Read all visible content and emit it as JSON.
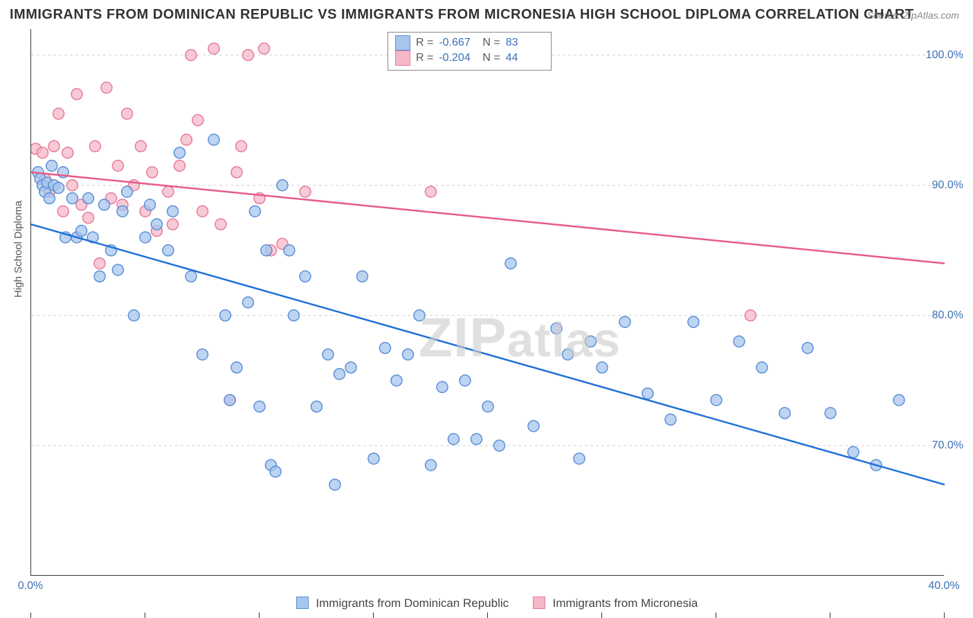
{
  "title": "IMMIGRANTS FROM DOMINICAN REPUBLIC VS IMMIGRANTS FROM MICRONESIA HIGH SCHOOL DIPLOMA CORRELATION CHART",
  "source": "Source: ZipAtlas.com",
  "y_axis_label": "High School Diploma",
  "watermark": "ZIPatlas",
  "chart": {
    "type": "scatter_with_regression",
    "xlim": [
      0,
      40
    ],
    "ylim": [
      60,
      102
    ],
    "x_ticks": [
      0,
      5,
      10,
      15,
      20,
      25,
      30,
      35,
      40
    ],
    "x_tick_labels_shown": {
      "0": "0.0%",
      "40": "40.0%"
    },
    "y_ticks": [
      70,
      80,
      90,
      100
    ],
    "y_tick_labels": [
      "70.0%",
      "80.0%",
      "90.0%",
      "100.0%"
    ],
    "grid_color": "#d0d0d0",
    "background_color": "#ffffff",
    "marker_radius": 8,
    "line_width": 2.5
  },
  "series": [
    {
      "key": "dominican",
      "label": "Immigrants from Dominican Republic",
      "fill_color": "#a7c6ed",
      "stroke_color": "#5b8fd6",
      "line_color": "#1f6fd6",
      "R": "-0.667",
      "N": "83",
      "regression": {
        "x1": 0,
        "y1": 87,
        "x2": 40,
        "y2": 67
      },
      "points": [
        [
          0.3,
          91
        ],
        [
          0.4,
          90.5
        ],
        [
          0.5,
          90
        ],
        [
          0.6,
          89.5
        ],
        [
          0.7,
          90.2
        ],
        [
          0.8,
          89
        ],
        [
          0.9,
          91.5
        ],
        [
          1.0,
          90
        ],
        [
          1.2,
          89.8
        ],
        [
          1.4,
          91
        ],
        [
          1.5,
          86
        ],
        [
          1.8,
          89
        ],
        [
          2.0,
          86
        ],
        [
          2.2,
          86.5
        ],
        [
          2.5,
          89
        ],
        [
          2.7,
          86
        ],
        [
          3.0,
          83
        ],
        [
          3.2,
          88.5
        ],
        [
          3.5,
          85
        ],
        [
          3.8,
          83.5
        ],
        [
          4.0,
          88
        ],
        [
          4.2,
          89.5
        ],
        [
          4.5,
          80
        ],
        [
          5.0,
          86
        ],
        [
          5.2,
          88.5
        ],
        [
          5.5,
          87
        ],
        [
          6.0,
          85
        ],
        [
          6.2,
          88
        ],
        [
          6.5,
          92.5
        ],
        [
          7.0,
          83
        ],
        [
          7.5,
          77
        ],
        [
          8.0,
          93.5
        ],
        [
          8.5,
          80
        ],
        [
          8.7,
          73.5
        ],
        [
          9.0,
          76
        ],
        [
          9.5,
          81
        ],
        [
          9.8,
          88
        ],
        [
          10.0,
          73
        ],
        [
          10.3,
          85
        ],
        [
          10.5,
          68.5
        ],
        [
          10.7,
          68
        ],
        [
          11.0,
          90
        ],
        [
          11.3,
          85
        ],
        [
          11.5,
          80
        ],
        [
          12.0,
          83
        ],
        [
          12.5,
          73
        ],
        [
          13.0,
          77
        ],
        [
          13.3,
          67
        ],
        [
          13.5,
          75.5
        ],
        [
          14.0,
          76
        ],
        [
          14.5,
          83
        ],
        [
          15.0,
          69
        ],
        [
          15.5,
          77.5
        ],
        [
          16.0,
          75
        ],
        [
          16.5,
          77
        ],
        [
          17.0,
          80
        ],
        [
          17.5,
          68.5
        ],
        [
          18.0,
          74.5
        ],
        [
          18.5,
          70.5
        ],
        [
          19.0,
          75
        ],
        [
          19.5,
          70.5
        ],
        [
          20.0,
          73
        ],
        [
          20.5,
          70
        ],
        [
          21.0,
          84
        ],
        [
          22.0,
          71.5
        ],
        [
          23.0,
          79
        ],
        [
          23.5,
          77
        ],
        [
          24.0,
          69
        ],
        [
          24.5,
          78
        ],
        [
          25.0,
          76
        ],
        [
          26.0,
          79.5
        ],
        [
          27.0,
          74
        ],
        [
          28.0,
          72
        ],
        [
          29.0,
          79.5
        ],
        [
          30.0,
          73.5
        ],
        [
          31.0,
          78
        ],
        [
          32.0,
          76
        ],
        [
          33.0,
          72.5
        ],
        [
          34.0,
          77.5
        ],
        [
          35.0,
          72.5
        ],
        [
          36.0,
          69.5
        ],
        [
          37.0,
          68.5
        ],
        [
          38.0,
          73.5
        ]
      ]
    },
    {
      "key": "micronesia",
      "label": "Immigrants from Micronesia",
      "fill_color": "#f5b8c8",
      "stroke_color": "#e77a9a",
      "line_color": "#e75a88",
      "R": "-0.204",
      "N": "44",
      "regression": {
        "x1": 0,
        "y1": 91,
        "x2": 40,
        "y2": 84
      },
      "points": [
        [
          0.2,
          92.8
        ],
        [
          0.5,
          92.5
        ],
        [
          0.6,
          90.5
        ],
        [
          0.8,
          89.5
        ],
        [
          1.0,
          93
        ],
        [
          1.2,
          95.5
        ],
        [
          1.4,
          88
        ],
        [
          1.6,
          92.5
        ],
        [
          1.8,
          90
        ],
        [
          2.0,
          97
        ],
        [
          2.2,
          88.5
        ],
        [
          2.5,
          87.5
        ],
        [
          2.8,
          93
        ],
        [
          3.0,
          84
        ],
        [
          3.3,
          97.5
        ],
        [
          3.5,
          89
        ],
        [
          3.8,
          91.5
        ],
        [
          4.0,
          88.5
        ],
        [
          4.2,
          95.5
        ],
        [
          4.5,
          90
        ],
        [
          4.8,
          93
        ],
        [
          5.0,
          88
        ],
        [
          5.3,
          91
        ],
        [
          5.5,
          86.5
        ],
        [
          6.0,
          89.5
        ],
        [
          6.2,
          87
        ],
        [
          6.5,
          91.5
        ],
        [
          6.8,
          93.5
        ],
        [
          7.0,
          100
        ],
        [
          7.3,
          95
        ],
        [
          7.5,
          88
        ],
        [
          8.0,
          100.5
        ],
        [
          8.3,
          87
        ],
        [
          8.7,
          73.5
        ],
        [
          9.0,
          91
        ],
        [
          9.2,
          93
        ],
        [
          9.5,
          100
        ],
        [
          10.0,
          89
        ],
        [
          10.2,
          100.5
        ],
        [
          10.5,
          85
        ],
        [
          11.0,
          85.5
        ],
        [
          12.0,
          89.5
        ],
        [
          17.5,
          89.5
        ],
        [
          31.5,
          80
        ]
      ]
    }
  ],
  "legend_labels": {
    "R": "R =",
    "N": "N ="
  }
}
